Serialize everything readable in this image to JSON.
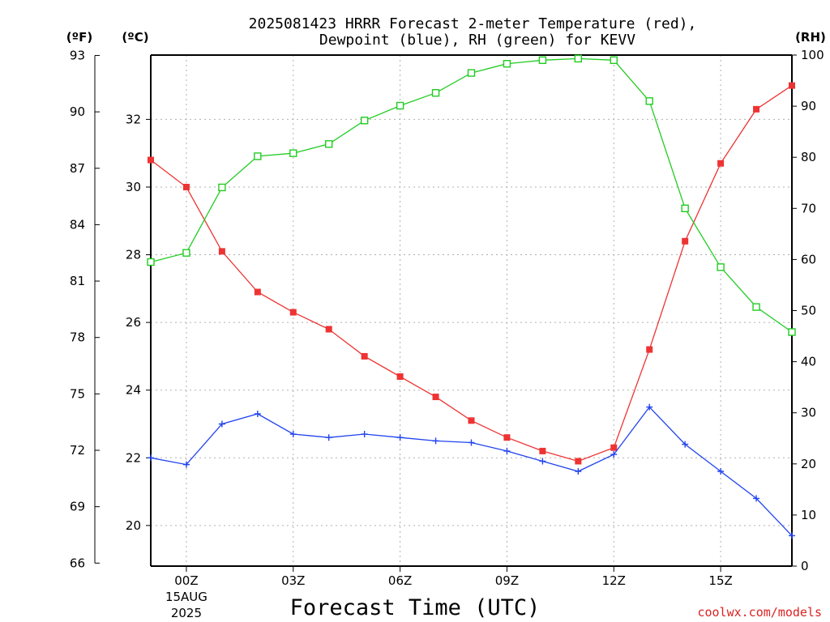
{
  "title_line1": "2025081423 HRRR Forecast 2-meter Temperature (red),",
  "title_line2": "Dewpoint (blue), RH (green) for KEVV",
  "xlabel": "Forecast Time (UTC)",
  "credit": "coolwx.com/models",
  "units": {
    "f": "(ºF)",
    "c": "(ºC)",
    "rh": "(RH)"
  },
  "colors": {
    "temp": "#ee3333",
    "dew": "#2244ee",
    "rh": "#22cc22",
    "axis": "#000000",
    "credit": "#dd2222"
  },
  "chart_data": {
    "type": "line",
    "x_ticks": [
      {
        "x": 0,
        "label": "00Z",
        "sub1": "15AUG",
        "sub2": "2025"
      },
      {
        "x": 3,
        "label": "03Z"
      },
      {
        "x": 6,
        "label": "06Z"
      },
      {
        "x": 9,
        "label": "09Z"
      },
      {
        "x": 12,
        "label": "12Z"
      },
      {
        "x": 15,
        "label": "15Z"
      }
    ],
    "xlim": [
      -1,
      17
    ],
    "ylim_c": [
      18.8,
      33.9
    ],
    "ylim_rh": [
      0,
      100
    ],
    "f_ticks": [
      66,
      69,
      72,
      75,
      78,
      81,
      84,
      87,
      90,
      93
    ],
    "c_ticks": [
      20,
      22,
      24,
      26,
      28,
      30,
      32
    ],
    "rh_ticks": [
      0,
      10,
      20,
      30,
      40,
      50,
      60,
      70,
      80,
      90,
      100
    ],
    "series": [
      {
        "key": "temp",
        "x": [
          -1,
          0,
          1,
          2,
          3,
          4,
          5,
          6,
          7,
          8,
          9,
          10,
          11,
          12,
          13,
          14,
          15,
          16,
          17
        ],
        "values": [
          30.8,
          30.0,
          28.1,
          26.9,
          26.3,
          25.8,
          25.0,
          24.4,
          23.8,
          23.1,
          22.6,
          22.2,
          21.9,
          22.3,
          25.2,
          28.4,
          30.7,
          32.3,
          33.0
        ],
        "marker": "filled-square"
      },
      {
        "key": "dew",
        "x": [
          -1,
          0,
          1,
          2,
          3,
          4,
          5,
          6,
          7,
          8,
          9,
          10,
          11,
          12,
          13,
          14,
          15,
          16,
          17
        ],
        "values": [
          22.0,
          21.8,
          23.0,
          23.3,
          22.7,
          22.6,
          22.7,
          22.6,
          22.5,
          22.45,
          22.2,
          21.9,
          21.6,
          22.1,
          23.5,
          22.4,
          21.6,
          20.8,
          19.7
        ],
        "marker": "plus"
      },
      {
        "key": "rh",
        "x": [
          -1,
          0,
          1,
          2,
          3,
          4,
          5,
          6,
          7,
          8,
          9,
          10,
          11,
          12,
          13,
          14,
          15,
          16,
          17
        ],
        "values": [
          59.5,
          61.3,
          74.1,
          80.2,
          80.8,
          82.6,
          87.2,
          90.1,
          92.6,
          96.5,
          98.3,
          99.0,
          99.3,
          99.0,
          91.0,
          70.0,
          58.5,
          50.7,
          45.8
        ],
        "marker": "open-square"
      }
    ]
  }
}
